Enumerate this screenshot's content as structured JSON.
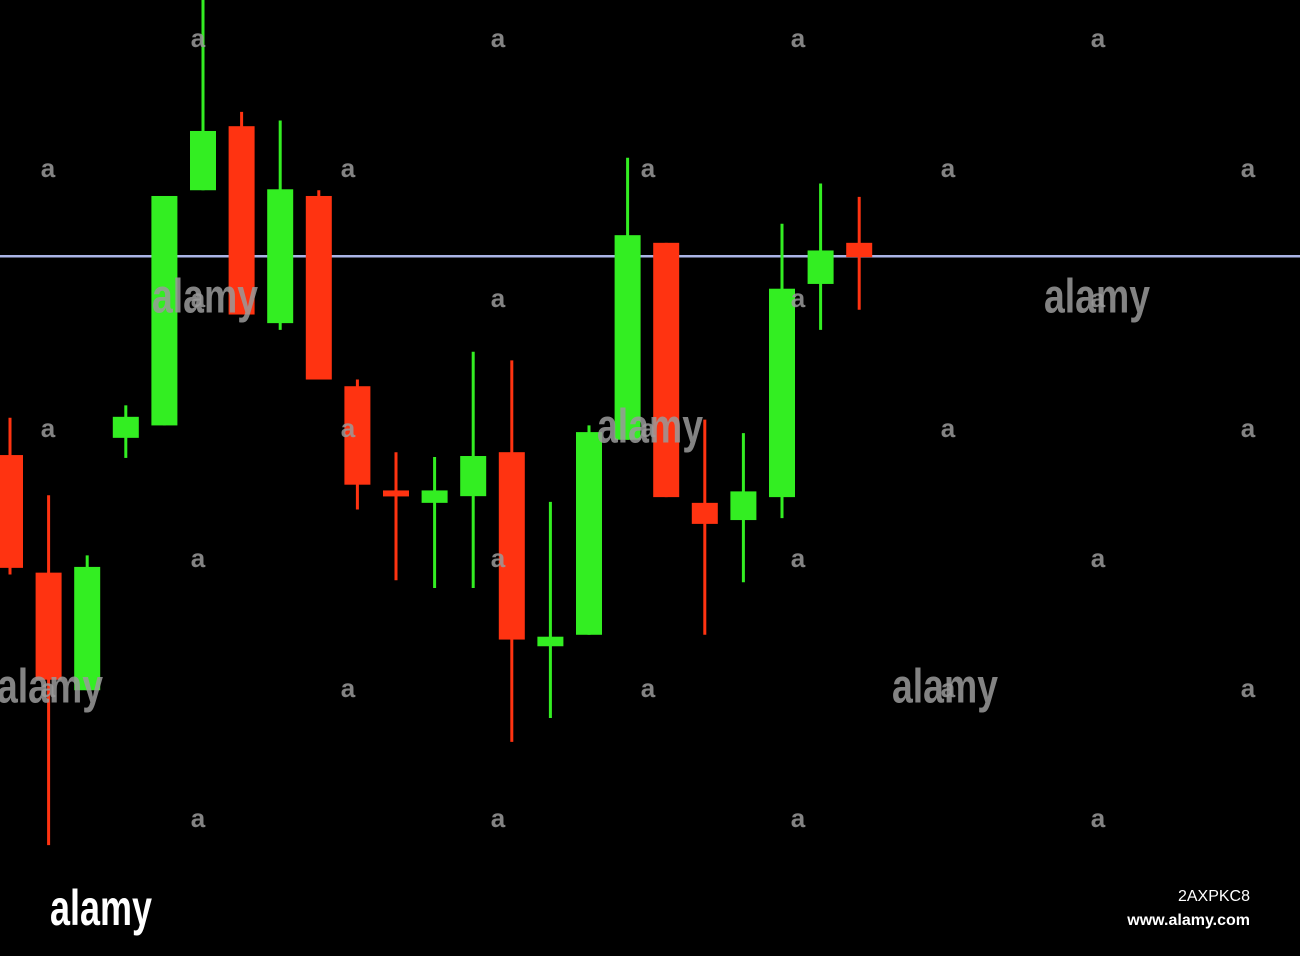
{
  "chart_data": {
    "type": "candlestick",
    "ylim": [
      0,
      100
    ],
    "up_color": "#33ee22",
    "down_color": "#ff3311",
    "reference_line": 73.2,
    "reference_color": "#aab4e6",
    "open": [
      52.4,
      40.1,
      27.8,
      54.2,
      55.5,
      80.1,
      86.8,
      66.2,
      79.5,
      59.6,
      48.7,
      47.4,
      48.1,
      52.7,
      32.4,
      33.6,
      54.0,
      74.6,
      47.4,
      45.6,
      48.0,
      70.3,
      74.6
    ],
    "high": [
      56.3,
      48.2,
      41.9,
      57.6,
      79.5,
      100,
      88.3,
      87.4,
      80.1,
      60.3,
      52.7,
      52.2,
      63.2,
      62.3,
      47.5,
      55.5,
      83.5,
      74.6,
      56.1,
      54.7,
      76.6,
      80.8,
      79.4
    ],
    "low": [
      39.9,
      11.6,
      27.8,
      52.1,
      55.5,
      80.1,
      67.1,
      65.5,
      60.3,
      46.7,
      39.3,
      38.5,
      38.5,
      22.4,
      24.9,
      33.6,
      54.0,
      48.0,
      33.6,
      39.1,
      45.8,
      65.5,
      67.6
    ],
    "close": [
      40.6,
      28.9,
      40.7,
      56.4,
      79.5,
      86.3,
      67.1,
      80.2,
      60.3,
      49.3,
      48.1,
      48.7,
      52.3,
      33.1,
      33.4,
      54.8,
      75.4,
      48.0,
      45.2,
      48.6,
      69.8,
      73.8,
      73.1
    ]
  },
  "watermark": {
    "tile": "a",
    "logo": "alamy",
    "image_id": "2AXPKC8",
    "url": "www.alamy.com"
  }
}
